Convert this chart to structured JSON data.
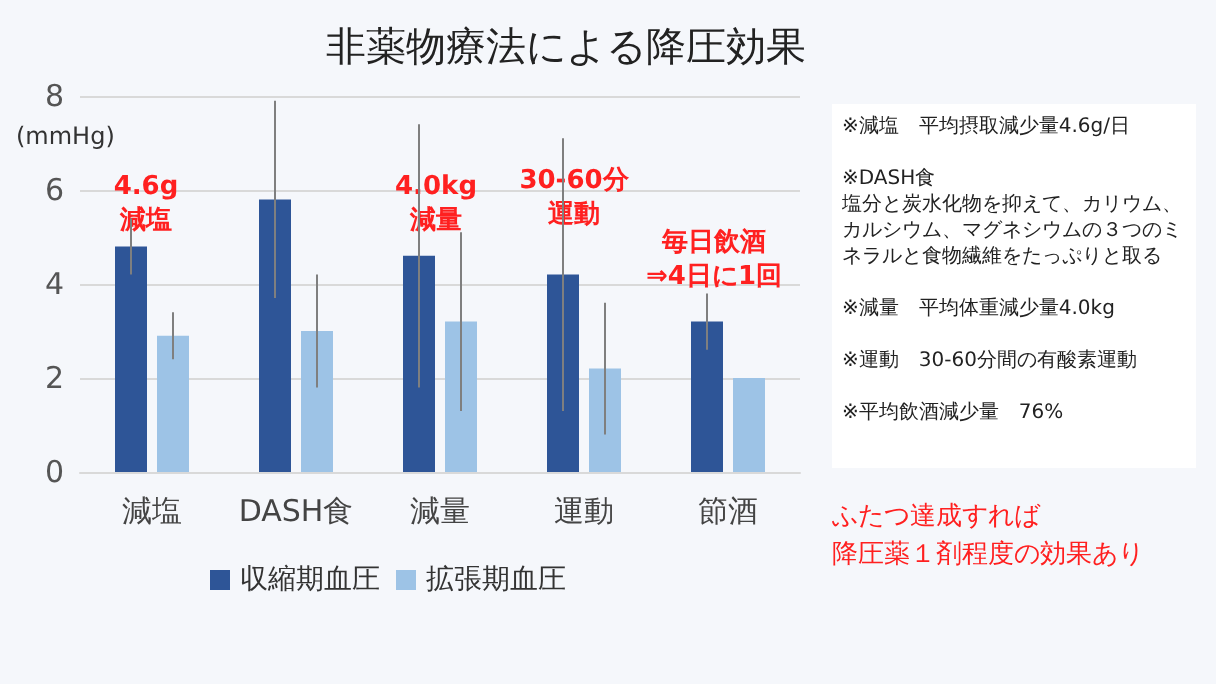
{
  "chart_data": {
    "type": "bar",
    "title": "非薬物療法による降圧効果",
    "ylabel": "(mmHg)",
    "categories": [
      "減塩",
      "DASH食",
      "減量",
      "運動",
      "節酒"
    ],
    "series": [
      {
        "name": "収縮期血圧",
        "color": "#2e5597",
        "values": [
          4.8,
          5.8,
          4.6,
          4.2,
          3.2
        ],
        "errors": [
          0.6,
          2.1,
          2.8,
          2.9,
          0.6
        ]
      },
      {
        "name": "拡張期血圧",
        "color": "#9dc3e6",
        "values": [
          2.9,
          3.0,
          3.2,
          2.2,
          2.0
        ],
        "errors": [
          0.5,
          1.2,
          1.9,
          1.4,
          null
        ]
      }
    ],
    "ylim": [
      0,
      8
    ],
    "yticks": [
      0,
      2,
      4,
      6,
      8
    ],
    "grid": "y",
    "legend": "bottom",
    "annotations": [
      "4.6g",
      "減塩",
      "4.0kg",
      "減量",
      "30-60分",
      "運動",
      "毎日飲酒",
      "⇒4日に1回",
      "※減塩　平均摂取減少量4.6g/日",
      "※DASH食",
      "塩分と炭水化物を抑えて、カリウム、カルシウム、マグネシウムの３つのミネラルと食物繊維をたっぷりと取る",
      "※減量　平均体重減少量4.0kg",
      "※運動　30-60分間の有酸素運動",
      "※平均飲酒減少量　76%",
      "ふたつ達成すれば",
      "降圧薬１剤程度の効果あり"
    ]
  }
}
